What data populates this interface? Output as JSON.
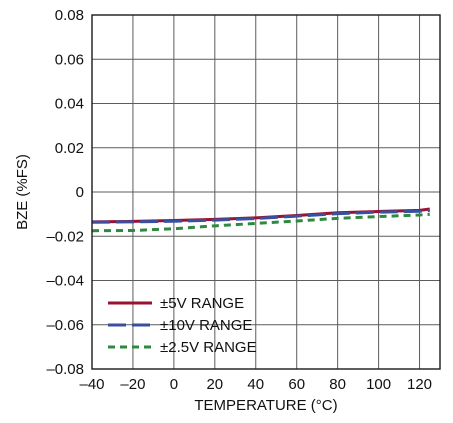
{
  "chart_data": {
    "type": "line",
    "title": "",
    "xlabel": "TEMPERATURE (°C)",
    "ylabel": "BZE (%FS)",
    "xlim": [
      -40,
      130
    ],
    "ylim": [
      -0.08,
      0.08
    ],
    "x_ticks": [
      -40,
      -20,
      0,
      20,
      40,
      60,
      80,
      100,
      120
    ],
    "y_ticks": [
      -0.08,
      -0.06,
      -0.04,
      -0.02,
      0,
      0.02,
      0.04,
      0.06,
      0.08
    ],
    "x_tick_labels": [
      "–40",
      "–20",
      "0",
      "20",
      "40",
      "60",
      "80",
      "100",
      "120"
    ],
    "y_tick_labels": [
      "–0.08",
      "–0.06",
      "–0.04",
      "–0.02",
      "0",
      "0.02",
      "0.04",
      "0.06",
      "0.08"
    ],
    "grid": true,
    "legend_position": "bottom-left",
    "series": [
      {
        "name": "±5V RANGE",
        "color": "#9b1131",
        "dash": "solid",
        "x": [
          -40,
          -20,
          0,
          20,
          40,
          60,
          80,
          100,
          120,
          125
        ],
        "y": [
          -0.0135,
          -0.0133,
          -0.0129,
          -0.0124,
          -0.0117,
          -0.0106,
          -0.0094,
          -0.0088,
          -0.0083,
          -0.0077
        ]
      },
      {
        "name": "±10V RANGE",
        "color": "#3a4f9d",
        "dash": "long-dash",
        "x": [
          -40,
          -20,
          0,
          20,
          40,
          60,
          80,
          100,
          120,
          125
        ],
        "y": [
          -0.0137,
          -0.0135,
          -0.0132,
          -0.0127,
          -0.012,
          -0.0109,
          -0.0098,
          -0.0091,
          -0.0087,
          -0.0084
        ]
      },
      {
        "name": "±2.5V RANGE",
        "color": "#2f8a3f",
        "dash": "short-dash",
        "x": [
          -40,
          -20,
          0,
          20,
          40,
          60,
          80,
          100,
          120,
          125
        ],
        "y": [
          -0.0175,
          -0.0174,
          -0.0166,
          -0.0153,
          -0.0142,
          -0.0131,
          -0.0119,
          -0.0111,
          -0.0104,
          -0.0101
        ]
      }
    ]
  }
}
